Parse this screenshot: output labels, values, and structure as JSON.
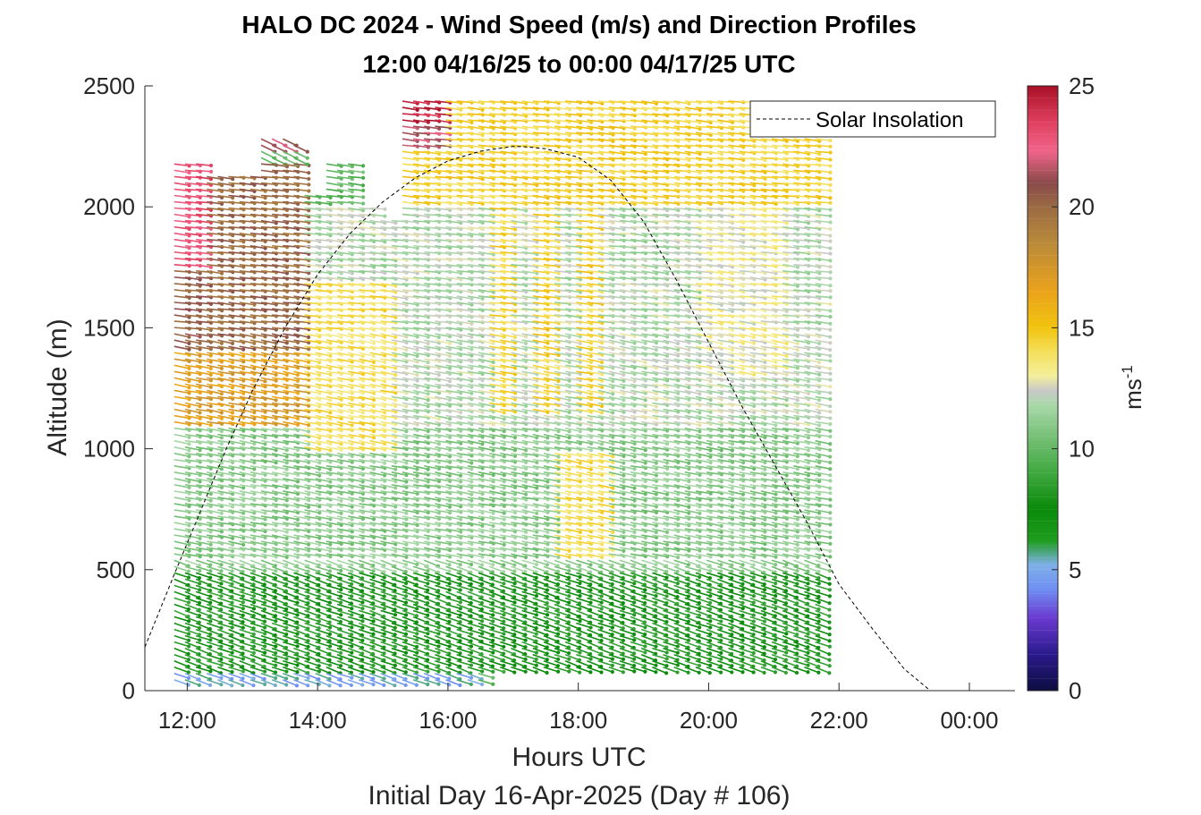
{
  "chart_data": {
    "type": "wind_barb_profile",
    "title": "HALO DC 2024 - Wind Speed (m/s) and Direction Profiles",
    "subtitle": "12:00 04/16/25 to 00:00 04/17/25  UTC",
    "xlabel": "Hours UTC",
    "xlabel2": "Initial Day 16-Apr-2025 (Day # 106)",
    "ylabel": "Altitude (m)",
    "colorbar_label": "ms",
    "colorbar_label_exp": "-1",
    "xlim": [
      11.35,
      24.7
    ],
    "ylim": [
      0,
      2500
    ],
    "xticks": [
      12,
      14,
      16,
      18,
      20,
      22,
      24
    ],
    "xtick_labels": [
      "12:00",
      "14:00",
      "16:00",
      "18:00",
      "20:00",
      "22:00",
      "00:00"
    ],
    "yticks": [
      0,
      500,
      1000,
      1500,
      2000,
      2500
    ],
    "ytick_labels": [
      "0",
      "500",
      "1000",
      "1500",
      "2000",
      "2500"
    ],
    "cbar_ticks": [
      0,
      5,
      10,
      15,
      20,
      25
    ],
    "cbar_tick_labels": [
      "0",
      "5",
      "10",
      "15",
      "20",
      "25"
    ],
    "cbar_range": [
      0,
      25
    ],
    "legend": {
      "label": "Solar Insolation",
      "location": "top-right"
    },
    "solar_insolation": {
      "x": [
        11.35,
        11.8,
        12.2,
        12.6,
        13.0,
        13.5,
        14.0,
        14.5,
        15.0,
        15.5,
        16.0,
        16.5,
        17.0,
        17.2,
        17.5,
        18.0,
        18.5,
        19.0,
        19.5,
        20.0,
        20.5,
        21.0,
        21.5,
        22.0,
        22.5,
        23.0,
        23.4,
        23.7,
        24.7
      ],
      "y": [
        180,
        480,
        740,
        1000,
        1240,
        1500,
        1720,
        1890,
        2020,
        2120,
        2190,
        2230,
        2250,
        2248,
        2240,
        2205,
        2110,
        1940,
        1700,
        1440,
        1180,
        940,
        700,
        440,
        260,
        90,
        0,
        0,
        0
      ]
    },
    "profiles": {
      "start_hour": 11.8,
      "end_hour": 21.75,
      "interval_hours": 0.1667,
      "gate_spacing_m": 26,
      "first_gate_m": 45,
      "top_altitudes_m": [
        {
          "hour": 11.8,
          "top": 2200
        },
        {
          "hour": 12.3,
          "top": 2150
        },
        {
          "hour": 12.8,
          "top": 2150
        },
        {
          "hour": 13.0,
          "top": 2300
        },
        {
          "hour": 13.5,
          "top": 2280
        },
        {
          "hour": 13.8,
          "top": 2050
        },
        {
          "hour": 14.0,
          "top": 2200
        },
        {
          "hour": 14.5,
          "top": 2000
        },
        {
          "hour": 14.9,
          "top": 1950
        },
        {
          "hour": 15.2,
          "top": 2460
        },
        {
          "hour": 21.75,
          "top": 2460
        }
      ],
      "speed_regimes_m_s": [
        {
          "altitude_range": [
            0,
            80
          ],
          "hours": [
            11.8,
            16.4
          ],
          "speed": 5
        },
        {
          "altitude_range": [
            80,
            500
          ],
          "hours": [
            11.8,
            21.75
          ],
          "speed": 8
        },
        {
          "altitude_range": [
            500,
            1100
          ],
          "hours": [
            11.8,
            21.75
          ],
          "speed": 11
        },
        {
          "altitude_range": [
            1100,
            2200
          ],
          "hours": [
            11.8,
            13.7
          ],
          "speed": 20
        },
        {
          "altitude_range": [
            1100,
            2000
          ],
          "hours": [
            13.7,
            21.75
          ],
          "speed": 12
        },
        {
          "altitude_range": [
            2000,
            2500
          ],
          "hours": [
            14.6,
            21.75
          ],
          "speed": 14.5
        }
      ]
    }
  }
}
